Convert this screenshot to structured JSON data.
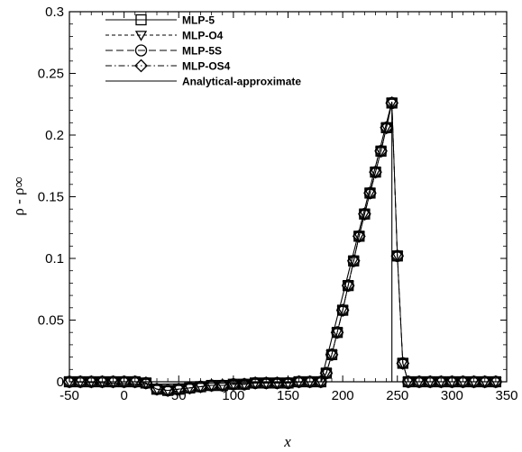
{
  "chart_data": {
    "type": "line",
    "xlabel": "x",
    "ylabel": "ρ - ρ∞",
    "xlim": [
      -50,
      350
    ],
    "ylim": [
      0,
      0.3
    ],
    "xticks": [
      "-50",
      "0",
      "50",
      "100",
      "150",
      "200",
      "250",
      "300",
      "350"
    ],
    "yticks": [
      "0",
      "0.05",
      "0.1",
      "0.15",
      "0.2",
      "0.25",
      "0.3"
    ],
    "grid": false,
    "legend_position": "top-left",
    "series": [
      {
        "name": "MLP-5",
        "marker": "square",
        "dash": "solid",
        "x": [
          -50,
          -40,
          -30,
          -20,
          -10,
          0,
          10,
          20,
          30,
          40,
          50,
          60,
          70,
          80,
          90,
          100,
          110,
          120,
          130,
          140,
          150,
          160,
          170,
          180,
          185,
          190,
          195,
          200,
          205,
          210,
          215,
          220,
          225,
          230,
          235,
          240,
          245,
          250,
          255,
          260,
          270,
          280,
          290,
          300,
          310,
          320,
          330,
          340
        ],
        "y": [
          0,
          0,
          0,
          0,
          0,
          0,
          0,
          -0.001,
          -0.006,
          -0.007,
          -0.006,
          -0.005,
          -0.004,
          -0.003,
          -0.003,
          -0.002,
          -0.002,
          -0.001,
          -0.001,
          -0.001,
          -0.001,
          0,
          0,
          0,
          0.007,
          0.022,
          0.04,
          0.058,
          0.078,
          0.098,
          0.118,
          0.136,
          0.153,
          0.17,
          0.187,
          0.206,
          0.226,
          0.102,
          0.015,
          0,
          0,
          0,
          0,
          0,
          0,
          0,
          0,
          0
        ]
      },
      {
        "name": "MLP-O4",
        "marker": "triangle-down",
        "dash": "dashed",
        "x": [
          -50,
          -40,
          -30,
          -20,
          -10,
          0,
          10,
          20,
          30,
          40,
          50,
          60,
          70,
          80,
          90,
          100,
          110,
          120,
          130,
          140,
          150,
          160,
          170,
          180,
          185,
          190,
          195,
          200,
          205,
          210,
          215,
          220,
          225,
          230,
          235,
          240,
          245,
          250,
          255,
          260,
          270,
          280,
          290,
          300,
          310,
          320,
          330,
          340
        ],
        "y": [
          0,
          0,
          0,
          0,
          0,
          0,
          0,
          -0.001,
          -0.006,
          -0.007,
          -0.006,
          -0.005,
          -0.004,
          -0.003,
          -0.003,
          -0.002,
          -0.002,
          -0.001,
          -0.001,
          -0.001,
          -0.001,
          0,
          0,
          0,
          0.007,
          0.022,
          0.04,
          0.058,
          0.078,
          0.098,
          0.118,
          0.136,
          0.153,
          0.17,
          0.187,
          0.206,
          0.226,
          0.102,
          0.015,
          0,
          0,
          0,
          0,
          0,
          0,
          0,
          0,
          0
        ]
      },
      {
        "name": "MLP-5S",
        "marker": "circle",
        "dash": "longdash",
        "x": [
          -50,
          -40,
          -30,
          -20,
          -10,
          0,
          10,
          20,
          30,
          40,
          50,
          60,
          70,
          80,
          90,
          100,
          110,
          120,
          130,
          140,
          150,
          160,
          170,
          180,
          185,
          190,
          195,
          200,
          205,
          210,
          215,
          220,
          225,
          230,
          235,
          240,
          245,
          250,
          255,
          260,
          270,
          280,
          290,
          300,
          310,
          320,
          330,
          340
        ],
        "y": [
          0,
          0,
          0,
          0,
          0,
          0,
          0,
          -0.001,
          -0.006,
          -0.007,
          -0.006,
          -0.005,
          -0.004,
          -0.003,
          -0.003,
          -0.002,
          -0.002,
          -0.001,
          -0.001,
          -0.001,
          -0.001,
          0,
          0,
          0,
          0.007,
          0.022,
          0.04,
          0.058,
          0.078,
          0.098,
          0.118,
          0.136,
          0.153,
          0.17,
          0.187,
          0.206,
          0.226,
          0.102,
          0.015,
          0,
          0,
          0,
          0,
          0,
          0,
          0,
          0,
          0
        ]
      },
      {
        "name": "MLP-OS4",
        "marker": "diamond",
        "dash": "dashdot",
        "x": [
          -50,
          -40,
          -30,
          -20,
          -10,
          0,
          10,
          20,
          30,
          40,
          50,
          60,
          70,
          80,
          90,
          100,
          110,
          120,
          130,
          140,
          150,
          160,
          170,
          180,
          185,
          190,
          195,
          200,
          205,
          210,
          215,
          220,
          225,
          230,
          235,
          240,
          245,
          250,
          255,
          260,
          270,
          280,
          290,
          300,
          310,
          320,
          330,
          340
        ],
        "y": [
          0,
          0,
          0,
          0,
          0,
          0,
          0,
          -0.001,
          -0.006,
          -0.007,
          -0.006,
          -0.005,
          -0.004,
          -0.003,
          -0.003,
          -0.002,
          -0.002,
          -0.001,
          -0.001,
          -0.001,
          -0.001,
          0,
          0,
          0,
          0.007,
          0.022,
          0.04,
          0.058,
          0.078,
          0.098,
          0.118,
          0.136,
          0.153,
          0.17,
          0.187,
          0.206,
          0.226,
          0.102,
          0.015,
          0,
          0,
          0,
          0,
          0,
          0,
          0,
          0,
          0
        ]
      },
      {
        "name": "Analytical-approximate",
        "marker": "none",
        "dash": "solid",
        "x": [
          -50,
          20,
          180,
          245,
          245,
          350
        ],
        "y": [
          0,
          -0.002,
          0,
          0.227,
          0,
          0
        ]
      }
    ]
  }
}
